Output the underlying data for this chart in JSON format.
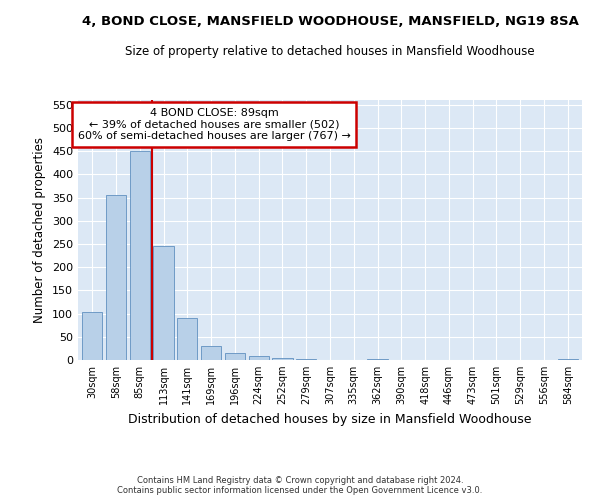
{
  "title": "4, BOND CLOSE, MANSFIELD WOODHOUSE, MANSFIELD, NG19 8SA",
  "subtitle": "Size of property relative to detached houses in Mansfield Woodhouse",
  "xlabel": "Distribution of detached houses by size in Mansfield Woodhouse",
  "ylabel": "Number of detached properties",
  "footer_line1": "Contains HM Land Registry data © Crown copyright and database right 2024.",
  "footer_line2": "Contains public sector information licensed under the Open Government Licence v3.0.",
  "property_label": "4 BOND CLOSE: 89sqm",
  "annotation_line1": "← 39% of detached houses are smaller (502)",
  "annotation_line2": "60% of semi-detached houses are larger (767) →",
  "bar_color": "#b8d0e8",
  "bar_edge_color": "#6090c0",
  "vline_color": "#cc0000",
  "box_edge_color": "#cc0000",
  "bg_color": "#dce8f5",
  "categories": [
    "30sqm",
    "58sqm",
    "85sqm",
    "113sqm",
    "141sqm",
    "169sqm",
    "196sqm",
    "224sqm",
    "252sqm",
    "279sqm",
    "307sqm",
    "335sqm",
    "362sqm",
    "390sqm",
    "418sqm",
    "446sqm",
    "473sqm",
    "501sqm",
    "529sqm",
    "556sqm",
    "584sqm"
  ],
  "values": [
    103,
    355,
    450,
    245,
    90,
    30,
    15,
    8,
    4,
    3,
    0,
    0,
    3,
    0,
    0,
    0,
    0,
    0,
    0,
    0,
    3
  ],
  "ylim": [
    0,
    560
  ],
  "yticks": [
    0,
    50,
    100,
    150,
    200,
    250,
    300,
    350,
    400,
    450,
    500,
    550
  ],
  "vline_x_index": 2.5
}
